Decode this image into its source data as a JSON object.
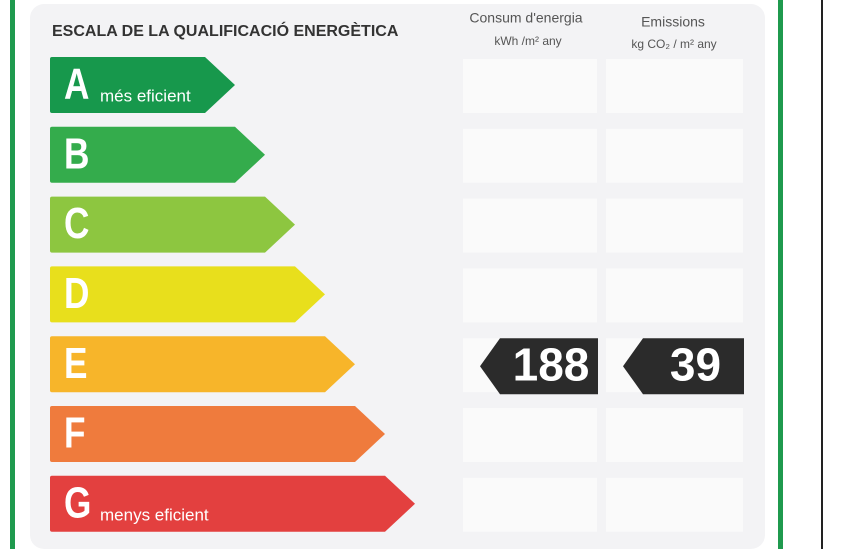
{
  "header": {
    "title": "ESCALA DE LA QUALIFICACIÓ ENERGÈTICA"
  },
  "columns": [
    {
      "title": "Consum d'energia",
      "unit": "kWh /m² any"
    },
    {
      "title": "Emissions",
      "unit": "kg CO₂ / m² any"
    }
  ],
  "rows": [
    {
      "letter": "A",
      "note": "més eficient",
      "color": "#17984c"
    },
    {
      "letter": "B",
      "color": "#34ac4c"
    },
    {
      "letter": "C",
      "color": "#8dc640"
    },
    {
      "letter": "D",
      "color": "#e8df1c"
    },
    {
      "letter": "E",
      "color": "#f7b52a",
      "energy": 188,
      "emissions": 39
    },
    {
      "letter": "F",
      "color": "#ef7b3d"
    },
    {
      "letter": "G",
      "note": "menys eficient",
      "color": "#e3403f"
    }
  ]
}
